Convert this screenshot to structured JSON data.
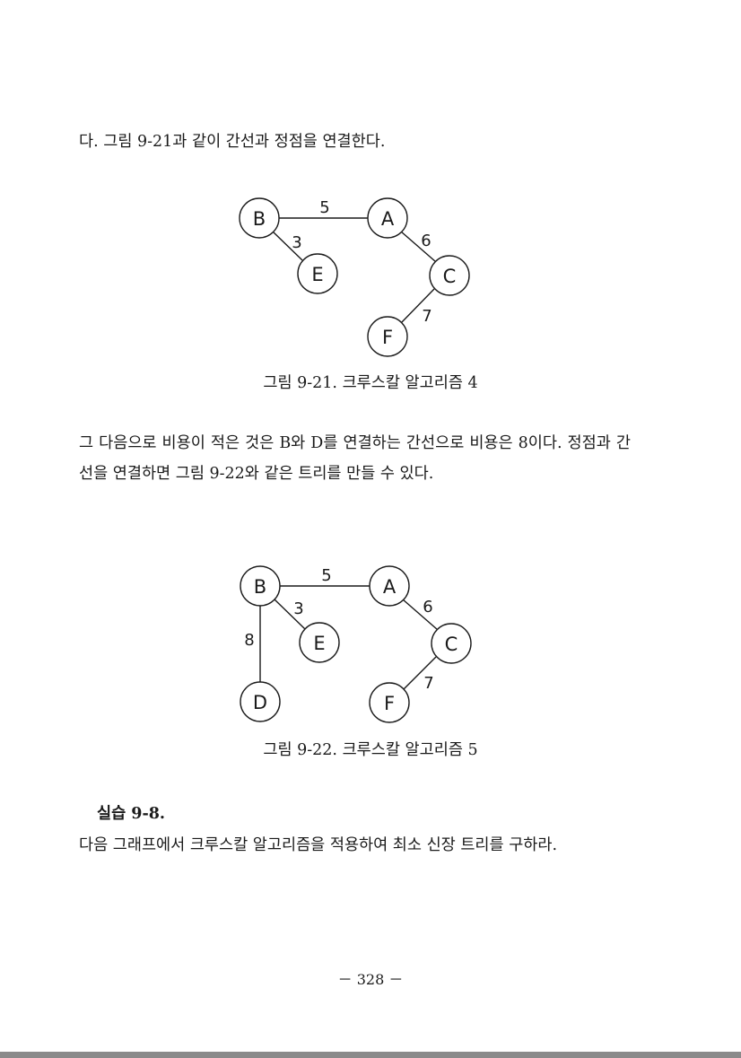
{
  "paragraphs": {
    "p1": "다. 그림 9-21과 같이 간선과 정점을 연결한다.",
    "p2": "  그 다음으로 비용이 적은 것은 B와 D를 연결하는 간선으로 비용은 8이다. 정점과 간선을 연결하면 그림 9-22와 같은 트리를 만들 수 있다.",
    "p3": "  다음 그래프에서 크루스칼 알고리즘을 적용하여 최소 신장 트리를 구하라."
  },
  "exercise_title": "실습 9-8.",
  "figure1": {
    "caption": "그림 9-21. 크루스칼 알고리즘 4",
    "nodes": [
      "B",
      "A",
      "E",
      "C",
      "F"
    ],
    "weights": {
      "BA": "5",
      "BE": "3",
      "AC": "6",
      "CF": "7"
    }
  },
  "figure2": {
    "caption": "그림 9-22. 크루스칼 알고리즘 5",
    "nodes": [
      "B",
      "A",
      "E",
      "C",
      "D",
      "F"
    ],
    "weights": {
      "BA": "5",
      "BE": "3",
      "AC": "6",
      "BD": "8",
      "CF": "7"
    }
  },
  "page_number": "－ 328 －"
}
